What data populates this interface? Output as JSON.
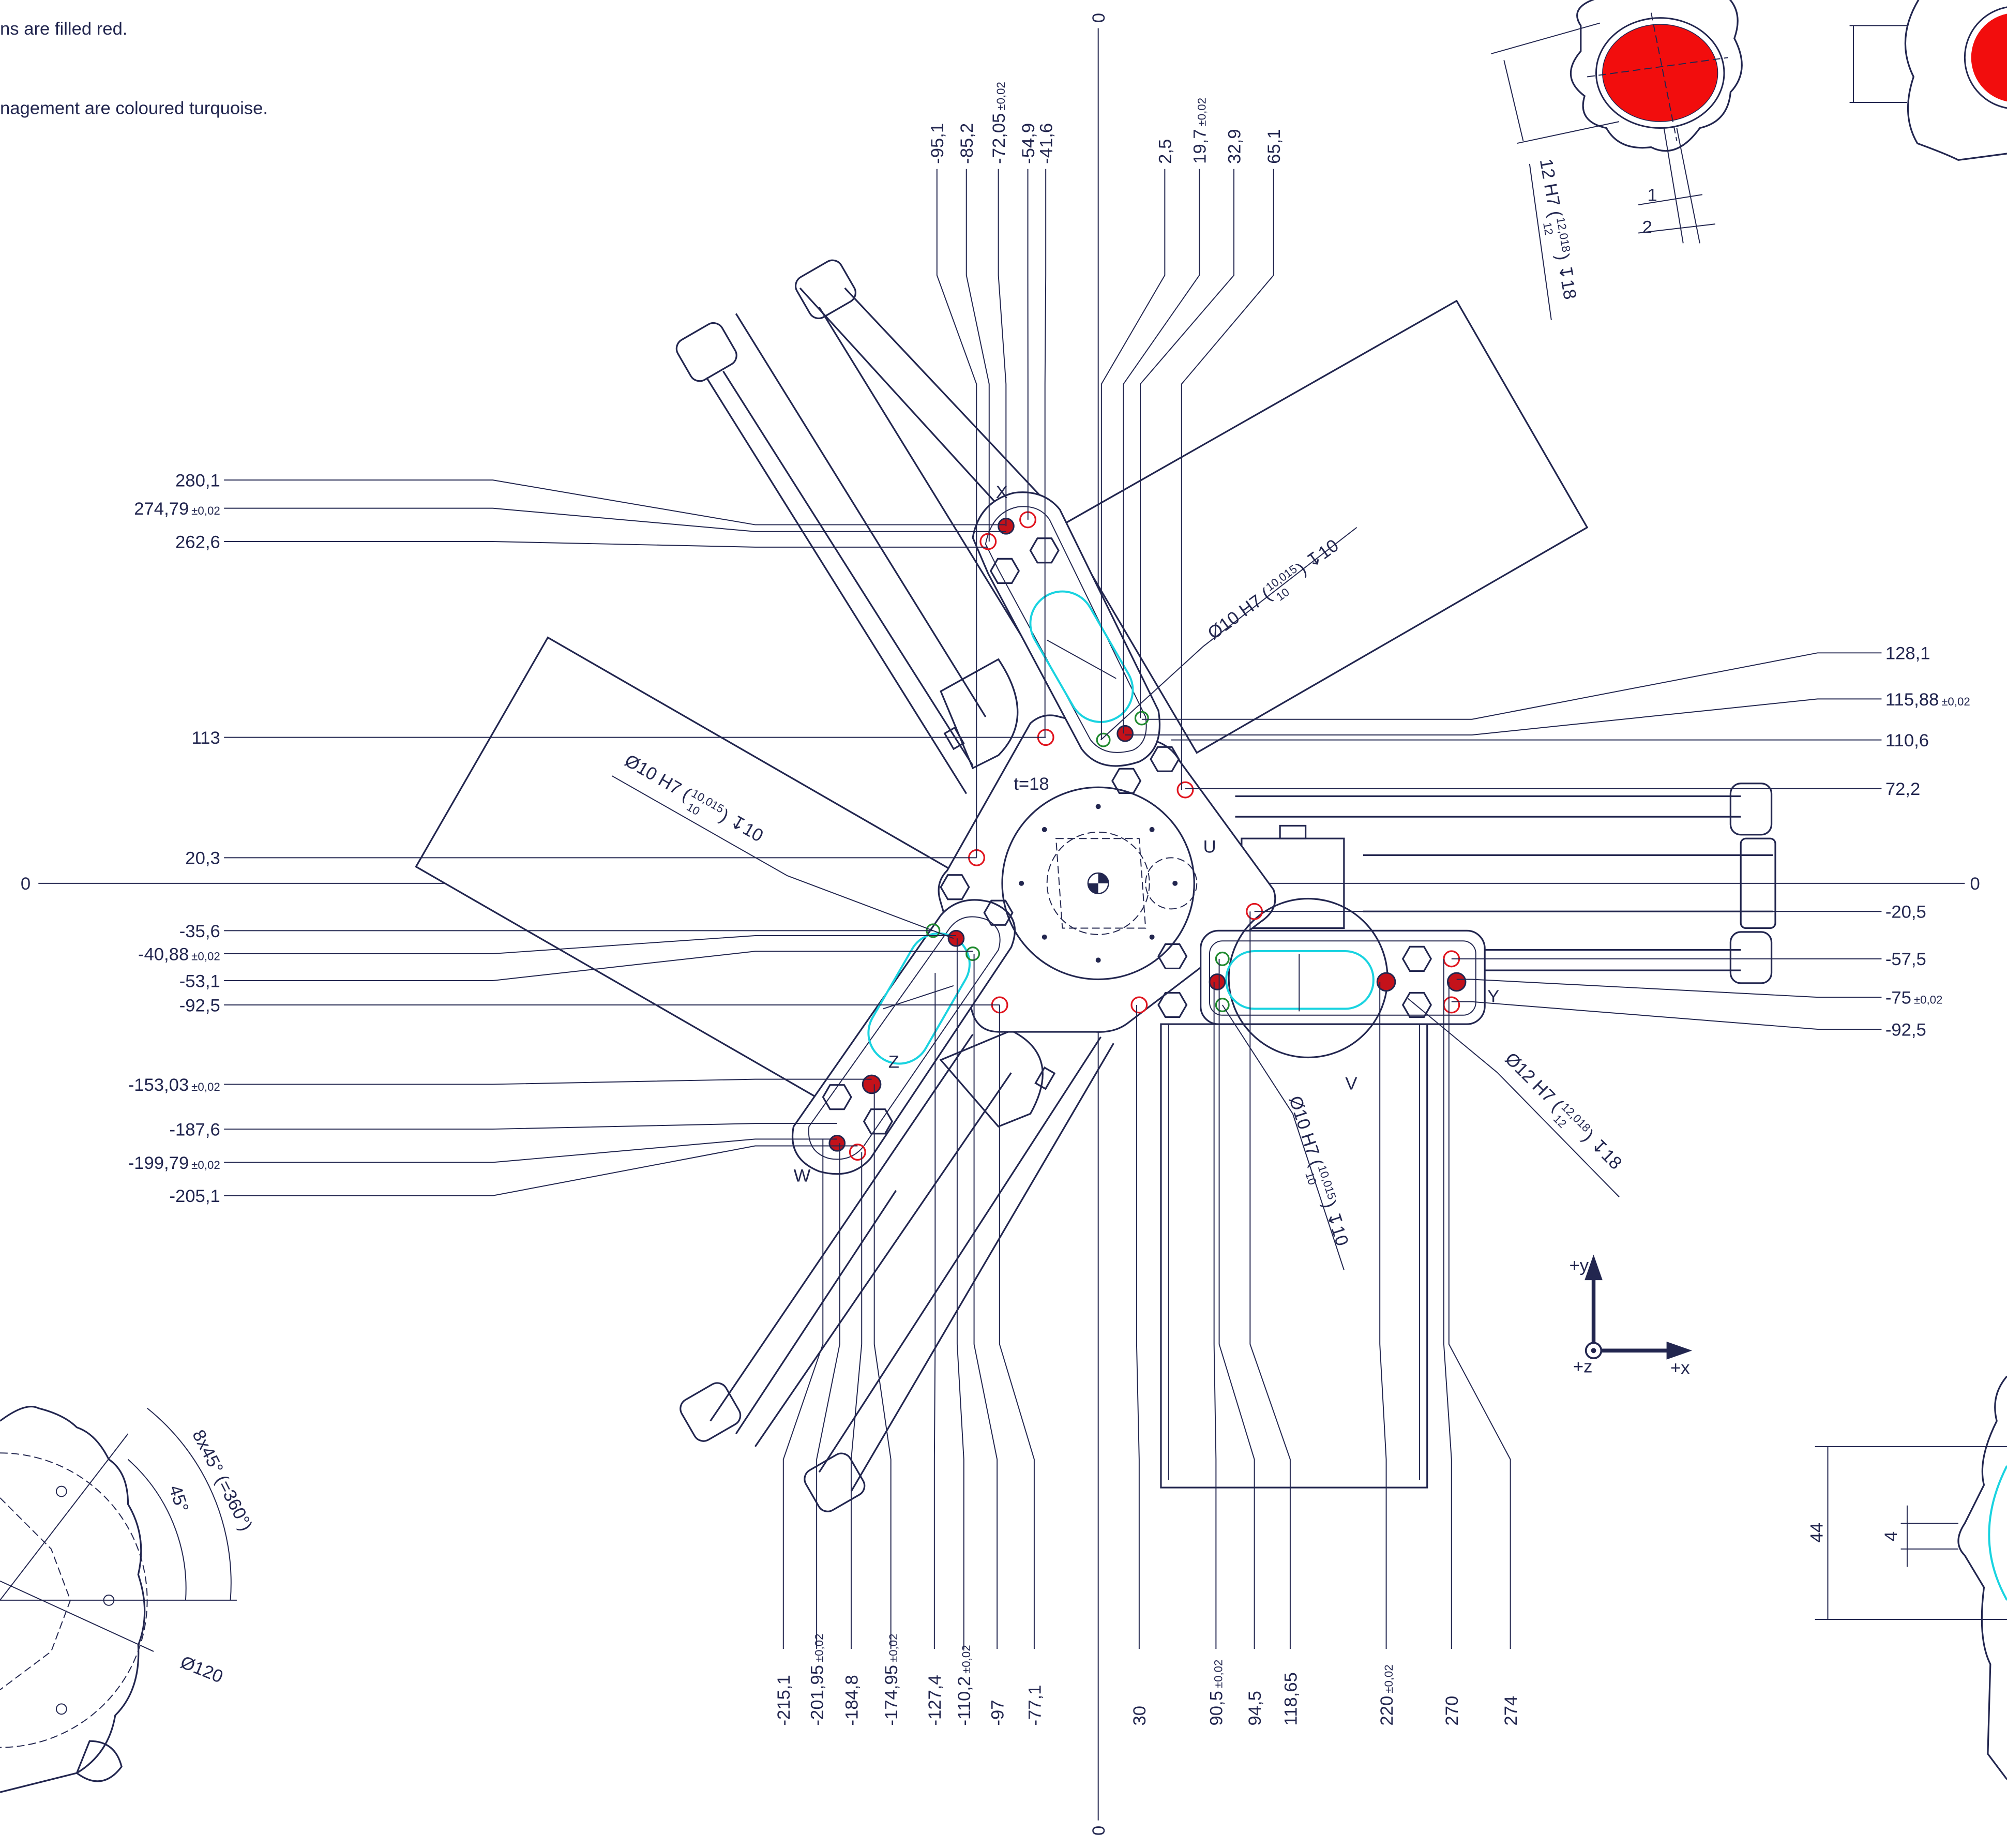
{
  "notes": [
    "ns are filled red.",
    "nagement are coloured turquoise."
  ],
  "origin_labels": {
    "left": "0",
    "right": "0",
    "top": "0",
    "bottom": "0"
  },
  "left_dims": [
    {
      "text": "280,1"
    },
    {
      "text": "274,79",
      "tol": "±0,02"
    },
    {
      "text": "262,6"
    },
    {
      "text": "113"
    },
    {
      "text": "20,3"
    },
    {
      "text": "-35,6"
    },
    {
      "text": "-40,88",
      "tol": "±0,02"
    },
    {
      "text": "-53,1"
    },
    {
      "text": "-92,5"
    },
    {
      "text": "-153,03",
      "tol": "±0,02"
    },
    {
      "text": "-187,6"
    },
    {
      "text": "-199,79",
      "tol": "±0,02"
    },
    {
      "text": "-205,1"
    }
  ],
  "right_dims": [
    {
      "text": "128,1"
    },
    {
      "text": "115,88",
      "tol": "±0,02"
    },
    {
      "text": "110,6"
    },
    {
      "text": "72,2"
    },
    {
      "text": "-20,5"
    },
    {
      "text": "-57,5"
    },
    {
      "text": "-75",
      "tol": "±0,02"
    },
    {
      "text": "-92,5"
    }
  ],
  "top_dims": [
    {
      "text": "-95,1"
    },
    {
      "text": "-85,2"
    },
    {
      "text": "-72,05",
      "tol": "±0,02"
    },
    {
      "text": "-54,9"
    },
    {
      "text": "-41,6"
    },
    {
      "text": "2,5"
    },
    {
      "text": "19,7",
      "tol": "±0,02"
    },
    {
      "text": "32,9"
    },
    {
      "text": "65,1"
    }
  ],
  "bottom_dims": [
    {
      "text": "-215,1"
    },
    {
      "text": "-201,95",
      "tol": "±0,02"
    },
    {
      "text": "-184,8"
    },
    {
      "text": "-174,95",
      "tol": "±0,02"
    },
    {
      "text": "-127,4"
    },
    {
      "text": "-110,2",
      "tol": "±0,02"
    },
    {
      "text": "-97"
    },
    {
      "text": "-77,1"
    },
    {
      "text": "30"
    },
    {
      "text": "90,5",
      "tol": "±0,02"
    },
    {
      "text": "94,5"
    },
    {
      "text": "118,65"
    },
    {
      "text": "220",
      "tol": "±0,02"
    },
    {
      "text": "270"
    },
    {
      "text": "274"
    }
  ],
  "callouts": [
    {
      "lead": "Ø10 H7 (",
      "upper": "10,015",
      "lower": "10",
      "tail": ") ↧10"
    },
    {
      "lead": "Ø10 H7 (",
      "upper": "10,015",
      "lower": "10",
      "tail": ") ↧10"
    },
    {
      "lead": "Ø10 H7 (",
      "upper": "10,015",
      "lower": "10",
      "tail": ") ↧10"
    },
    {
      "lead": "Ø12 H7 (",
      "upper": "12,018",
      "lower": "12",
      "tail": ") ↧18"
    },
    {
      "lead": "12 H7 (",
      "upper": "12,018",
      "lower": "12",
      "tail": ") ↧18"
    }
  ],
  "part_letters": [
    "X",
    "U",
    "V",
    "W",
    "Y",
    "Z"
  ],
  "thickness": "t=18",
  "detail_top_dims": [
    "1",
    "2"
  ],
  "detail_bottom_left": {
    "pitch": "8x45° (=360°)",
    "angle": "45°",
    "diameter": "Ø120"
  },
  "detail_bottom_right_dims": [
    "44",
    "4"
  ],
  "axes": {
    "y": "+y",
    "z": "+z",
    "x": "+x"
  }
}
